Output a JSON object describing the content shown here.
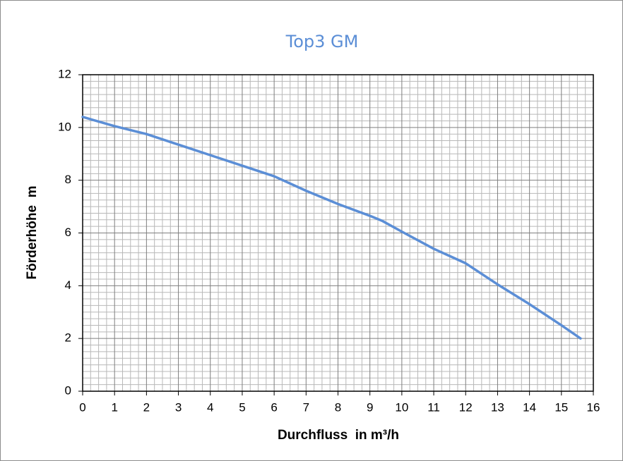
{
  "chart_data": {
    "type": "line",
    "title": "Top3 GM",
    "x_label": "Durchfluss  in m³/h",
    "y_label": "Förderhöhe  m",
    "x": [
      0,
      1,
      2,
      3,
      4,
      5,
      6,
      7,
      8,
      9,
      9.4,
      10,
      11,
      12,
      13,
      14,
      15,
      15.6
    ],
    "series": [
      {
        "name": "Top3 GM",
        "color": "#5b8ed6",
        "values": [
          10.4,
          10.05,
          9.75,
          9.35,
          8.95,
          8.55,
          8.15,
          7.6,
          7.1,
          6.65,
          6.45,
          6.05,
          5.4,
          4.85,
          4.05,
          3.3,
          2.5,
          2.0
        ]
      }
    ],
    "xlim": [
      0,
      16
    ],
    "xticks": [
      0,
      1,
      2,
      3,
      4,
      5,
      6,
      7,
      8,
      9,
      10,
      11,
      12,
      13,
      14,
      15,
      16
    ],
    "ylim": [
      0,
      12
    ],
    "yticks": [
      0,
      2,
      4,
      6,
      8,
      10,
      12
    ],
    "grid": true,
    "minor_grid_divisions": {
      "x": 4,
      "y": 8
    },
    "title_color": "#5b8ed6"
  }
}
